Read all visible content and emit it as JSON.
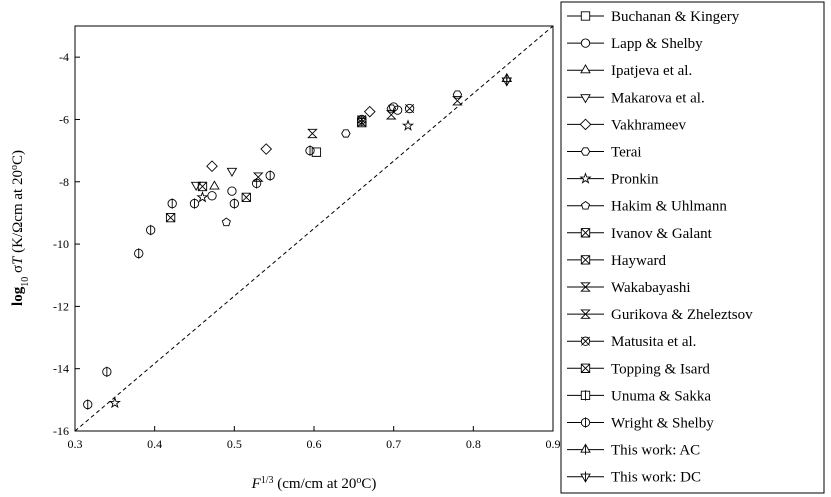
{
  "chart_data": {
    "type": "scatter",
    "xlabel": [
      {
        "text": "F",
        "style": "italic"
      },
      {
        "text": "1/3",
        "style": "sup"
      },
      {
        "text": " (cm/cm at 20",
        "style": "normal"
      },
      {
        "text": "o",
        "style": "sup"
      },
      {
        "text": "C)",
        "style": "normal"
      }
    ],
    "ylabel": [
      {
        "text": "log",
        "style": "bold"
      },
      {
        "text": "10",
        "style": "sub"
      },
      {
        "text": " σ",
        "style": "normal"
      },
      {
        "text": "T",
        "style": "italic"
      },
      {
        "text": " (K/Ωcm at 20",
        "style": "normal"
      },
      {
        "text": "o",
        "style": "sup"
      },
      {
        "text": "C)",
        "style": "normal"
      }
    ],
    "xlim": [
      0.3,
      0.9
    ],
    "xticks": [
      0.3,
      0.4,
      0.5,
      0.6,
      0.7,
      0.8,
      0.9
    ],
    "ylim": [
      -16,
      -3
    ],
    "yticks": [
      -16,
      -14,
      -12,
      -10,
      -8,
      -6,
      -4
    ],
    "reference_line": {
      "x": [
        0.3,
        0.9
      ],
      "y": [
        -16,
        -3
      ],
      "style": "dashed"
    },
    "series": [
      {
        "name": "Buchanan & Kingery",
        "marker": "square",
        "x": [
          0.603
        ],
        "values": [
          -7.05
        ]
      },
      {
        "name": "Lapp & Shelby",
        "marker": "circle",
        "x": [
          0.472,
          0.497,
          0.7,
          0.705
        ],
        "values": [
          -8.45,
          -8.3,
          -5.6,
          -5.7
        ]
      },
      {
        "name": "Ipatjeva et al.",
        "marker": "triangle-up",
        "x": [
          0.475
        ],
        "values": [
          -8.15
        ]
      },
      {
        "name": "Makarova et al.",
        "marker": "triangle-down",
        "x": [
          0.452,
          0.497
        ],
        "values": [
          -8.1,
          -7.65
        ]
      },
      {
        "name": "Vakhrameev",
        "marker": "diamond",
        "x": [
          0.472,
          0.54,
          0.67
        ],
        "values": [
          -7.5,
          -6.95,
          -5.75
        ]
      },
      {
        "name": "Terai",
        "marker": "hexagon",
        "x": [
          0.64,
          0.697,
          0.78
        ],
        "values": [
          -6.45,
          -5.65,
          -5.2
        ]
      },
      {
        "name": "Pronkin",
        "marker": "star",
        "x": [
          0.35,
          0.46,
          0.718
        ],
        "values": [
          -15.1,
          -8.5,
          -6.2
        ]
      },
      {
        "name": "Hakim & Uhlmann",
        "marker": "pentagon",
        "x": [
          0.49
        ],
        "values": [
          -9.3
        ]
      },
      {
        "name": "Ivanov & Galant",
        "marker": "square-x",
        "x": [
          0.42,
          0.515
        ],
        "values": [
          -9.15,
          -8.5
        ]
      },
      {
        "name": "Hayward",
        "marker": "square-x",
        "x": [
          0.66
        ],
        "values": [
          -6.1
        ]
      },
      {
        "name": "Wakabayashi",
        "marker": "hourglass",
        "x": [
          0.53,
          0.78
        ],
        "values": [
          -7.85,
          -5.4
        ]
      },
      {
        "name": "Gurikova & Zheleztsov",
        "marker": "hourglass",
        "x": [
          0.598,
          0.697
        ],
        "values": [
          -6.45,
          -5.85
        ]
      },
      {
        "name": "Matusita et al.",
        "marker": "circle-x",
        "x": [
          0.66,
          0.72
        ],
        "values": [
          -6.0,
          -5.65
        ]
      },
      {
        "name": "Topping & Isard",
        "marker": "square-x",
        "x": [
          0.46
        ],
        "values": [
          -8.15
        ]
      },
      {
        "name": "Unuma & Sakka",
        "marker": "square-v",
        "x": [
          0.66
        ],
        "values": [
          -6.05
        ]
      },
      {
        "name": "Wright & Shelby",
        "marker": "circle-v",
        "x": [
          0.316,
          0.34,
          0.38,
          0.395,
          0.422,
          0.45,
          0.5,
          0.528,
          0.545,
          0.595
        ],
        "values": [
          -15.15,
          -14.1,
          -10.3,
          -9.55,
          -8.7,
          -8.7,
          -8.7,
          -8.05,
          -7.8,
          -7.0
        ]
      },
      {
        "name": "This work: AC",
        "marker": "triangle-up-v",
        "x": [
          0.842
        ],
        "values": [
          -4.7
        ]
      },
      {
        "name": "This work: DC",
        "marker": "triangle-down-v",
        "x": [
          0.842
        ],
        "values": [
          -4.75
        ]
      }
    ]
  }
}
